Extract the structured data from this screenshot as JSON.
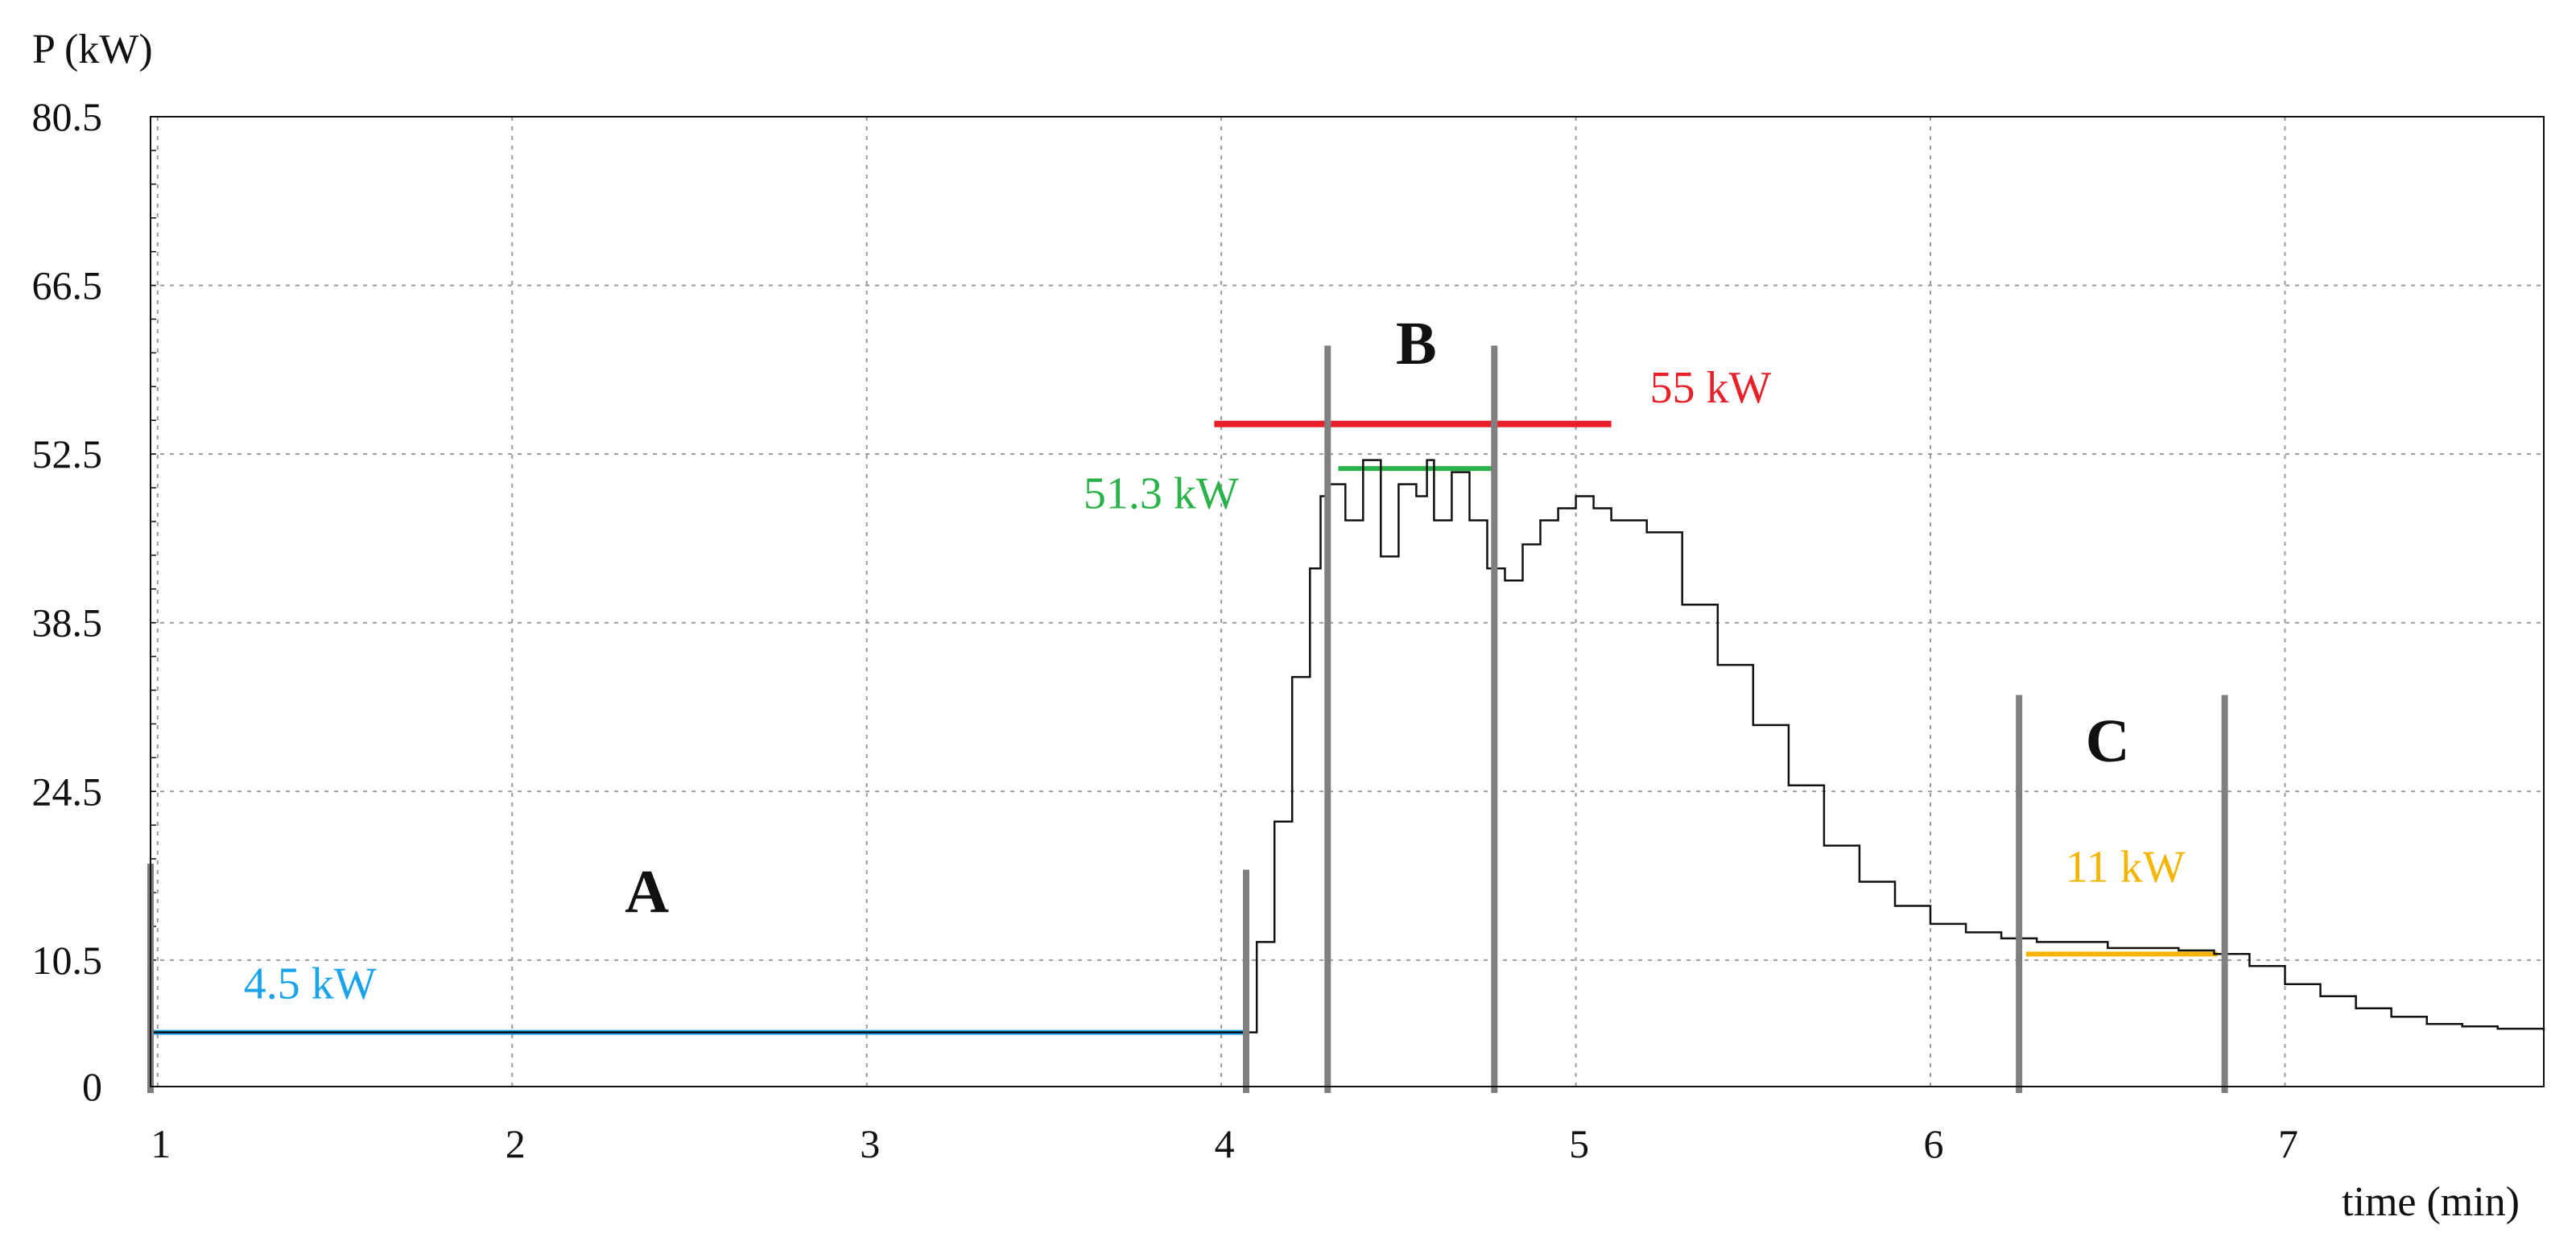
{
  "colors": {
    "signal": "#111111",
    "grid": "#9a9a9a",
    "segment_markers": "#7f7f7f",
    "level_A": "#1aa3e8",
    "level_B_max": "#e8202a",
    "level_B_mean": "#2cb24a",
    "level_C": "#f4b400"
  },
  "chart_data": {
    "type": "line",
    "ylabel": "P (kW)",
    "xlabel": "time (min)",
    "xlim": [
      0.98,
      7.73
    ],
    "ylim": [
      0,
      80.5
    ],
    "xticks": [
      1,
      2,
      3,
      4,
      5,
      6,
      7
    ],
    "yticks": [
      0,
      10.5,
      24.5,
      38.5,
      52.5,
      66.5,
      80.5
    ],
    "grid": true,
    "series": [
      {
        "x": [
          0.98,
          4.05,
          4.1,
          4.15,
          4.2,
          4.25,
          4.28,
          4.3,
          4.35,
          4.4,
          4.45,
          4.5,
          4.55,
          4.58,
          4.6,
          4.65,
          4.7,
          4.75,
          4.8,
          4.85,
          4.9,
          4.95,
          5.0,
          5.05,
          5.1,
          5.2,
          5.3,
          5.4,
          5.5,
          5.6,
          5.7,
          5.8,
          5.9,
          6.0,
          6.1,
          6.2,
          6.3,
          6.5,
          6.7,
          6.8,
          6.9,
          7.0,
          7.1,
          7.2,
          7.3,
          7.4,
          7.5,
          7.6,
          7.73
        ],
        "y": [
          4.5,
          4.5,
          12,
          22,
          34,
          43,
          49,
          50,
          47,
          52,
          44,
          50,
          49,
          52,
          47,
          51,
          47,
          43,
          42,
          45,
          47,
          48,
          49,
          48,
          47,
          46,
          40,
          35,
          30,
          25,
          20,
          17,
          15,
          13.5,
          12.8,
          12.3,
          12,
          11.5,
          11.3,
          11,
          10,
          8.5,
          7.5,
          6.5,
          5.8,
          5.2,
          5.0,
          4.8,
          4.6
        ]
      }
    ],
    "segment_markers": [
      {
        "x": 0.98,
        "y_top": 18.5
      },
      {
        "x": 4.07,
        "y_top": 18.0
      },
      {
        "x": 4.3,
        "y_top": 61.5
      },
      {
        "x": 4.77,
        "y_top": 61.5
      },
      {
        "x": 6.25,
        "y_top": 32.5
      },
      {
        "x": 6.83,
        "y_top": 32.5
      }
    ],
    "level_lines": [
      {
        "name": "4.5 kW",
        "y": 4.5,
        "x0": 0.98,
        "x1": 4.07,
        "color_key": "level_A"
      },
      {
        "name": "55 kW",
        "y": 55,
        "x0": 3.98,
        "x1": 5.1,
        "color_key": "level_B_max"
      },
      {
        "name": "51.3 kW",
        "y": 51.3,
        "x0": 4.33,
        "x1": 4.77,
        "color_key": "level_B_mean"
      },
      {
        "name": "11 kW",
        "y": 11,
        "x0": 6.27,
        "x1": 6.81,
        "color_key": "level_C"
      }
    ],
    "annotations": [
      {
        "text": "A",
        "x": 2.38,
        "y": 14.5,
        "kind": "region"
      },
      {
        "text": "B",
        "x": 4.55,
        "y": 60,
        "kind": "region"
      },
      {
        "text": "C",
        "x": 6.5,
        "y": 27,
        "kind": "region"
      },
      {
        "text": "4.5 kW",
        "x": 1.43,
        "y": 7.3,
        "kind": "level",
        "color_key": "level_A"
      },
      {
        "text": "55 kW",
        "x": 5.38,
        "y": 56.8,
        "kind": "level",
        "color_key": "level_B_max"
      },
      {
        "text": "51.3 kW",
        "x": 3.83,
        "y": 48.0,
        "kind": "level",
        "color_key": "level_B_mean"
      },
      {
        "text": "11 kW",
        "x": 6.55,
        "y": 17.0,
        "kind": "level",
        "color_key": "level_C"
      }
    ]
  }
}
